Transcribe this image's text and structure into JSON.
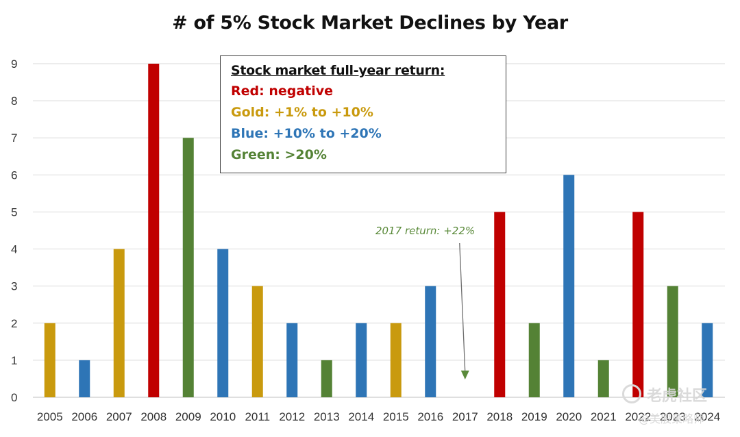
{
  "chart_data": {
    "type": "bar",
    "title": "# of 5% Stock Market Declines by Year",
    "xlabel": "",
    "ylabel": "",
    "ylim": [
      0,
      9
    ],
    "y_ticks": [
      "0",
      "1",
      "2",
      "3",
      "4",
      "5",
      "6",
      "7",
      "8",
      "9"
    ],
    "grid": true,
    "categories": [
      "2005",
      "2006",
      "2007",
      "2008",
      "2009",
      "2010",
      "2011",
      "2012",
      "2013",
      "2014",
      "2015",
      "2016",
      "2017",
      "2018",
      "2019",
      "2020",
      "2021",
      "2022",
      "2023",
      "2024"
    ],
    "values": [
      2,
      1,
      4,
      9,
      7,
      4,
      3,
      2,
      1,
      2,
      2,
      3,
      0,
      5,
      2,
      6,
      1,
      5,
      3,
      2
    ],
    "bar_groups": [
      "gold",
      "blue",
      "gold",
      "red",
      "green",
      "blue",
      "gold",
      "blue",
      "green",
      "blue",
      "gold",
      "blue",
      "green",
      "red",
      "green",
      "blue",
      "green",
      "red",
      "green",
      "blue"
    ],
    "group_colors": {
      "red": "#c00000",
      "gold": "#c99a0e",
      "blue": "#2e75b6",
      "green": "#548235"
    },
    "legend": {
      "placement": "top-center",
      "heading": "Stock market full-year return:",
      "entries": [
        {
          "group": "red",
          "label": "Red: negative"
        },
        {
          "group": "gold",
          "label": "Gold: +1% to +10%"
        },
        {
          "group": "blue",
          "label": "Blue: +10% to +20%"
        },
        {
          "group": "green",
          "label": "Green: >20%"
        }
      ]
    },
    "annotation": {
      "text": "2017 return: +22%",
      "target_category": "2017",
      "target_value": 0.5,
      "color": "#5a8a3a"
    }
  },
  "watermark": {
    "line1": "老虎社区",
    "line2": "@美股策略师"
  }
}
